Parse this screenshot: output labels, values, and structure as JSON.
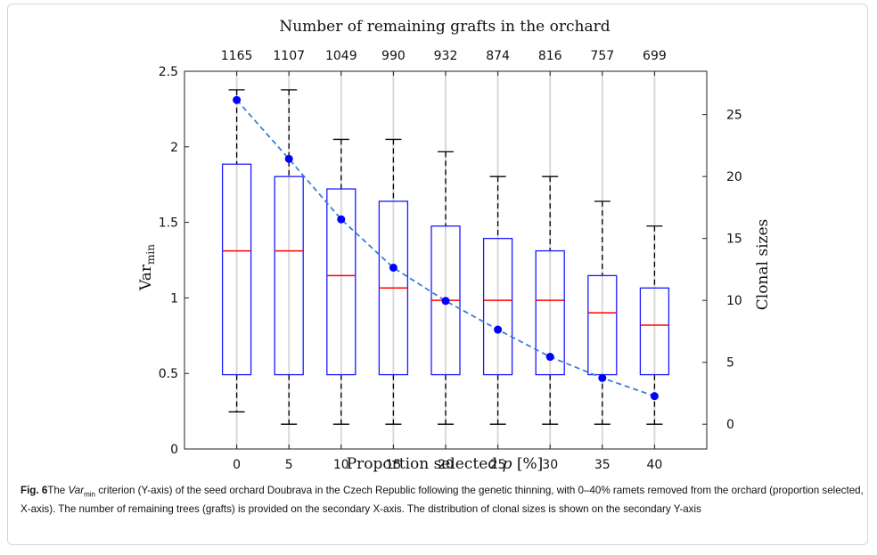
{
  "figure": {
    "caption_label": "Fig. 6",
    "caption_parts": {
      "p1": "The ",
      "var_main": "Var",
      "var_sub": "min",
      "p2": " criterion (Y-axis) of the seed orchard Doubrava in the Czech Republic following the genetic thinning, with 0–40% ramets removed from the orchard (proportion selected, X-axis). The number of remaining trees (grafts) is provided on the secondary X-axis. The distribution of clonal sizes is shown on the secondary Y-axis"
    }
  },
  "chart_data": {
    "type": "box",
    "title_top": "Number of remaining grafts in the orchard",
    "xlabel": "Proportion selected p [%]",
    "xlabel_parts": {
      "main": "Proportion selected ",
      "var": "p",
      "unit": " [%]"
    },
    "ylabel_main": "Var",
    "ylabel_sub": "min",
    "ylabel_right": "Clonal sizes",
    "x": [
      0,
      5,
      10,
      15,
      20,
      25,
      30,
      35,
      40
    ],
    "x_tick_labels": [
      "0",
      "5",
      "10",
      "15",
      "20",
      "25",
      "30",
      "35",
      "40"
    ],
    "top_tick_labels": [
      "1165",
      "1107",
      "1049",
      "990",
      "932",
      "874",
      "816",
      "757",
      "699"
    ],
    "ylim_left": [
      0,
      2.5
    ],
    "yticks_left": [
      0,
      0.5,
      1,
      1.5,
      2,
      2.5
    ],
    "ytick_labels_left": [
      "0",
      "0.5",
      "1",
      "1.5",
      "2",
      "2.5"
    ],
    "ylim_right": [
      -2,
      28.5
    ],
    "yticks_right": [
      0,
      5,
      10,
      15,
      20,
      25
    ],
    "ytick_labels_right": [
      "0",
      "5",
      "10",
      "15",
      "20",
      "25"
    ],
    "boxes": [
      {
        "x": 0,
        "whisker_low": 1,
        "q1": 4,
        "median": 14,
        "q3": 21,
        "whisker_high": 27
      },
      {
        "x": 5,
        "whisker_low": 0,
        "q1": 4,
        "median": 14,
        "q3": 20,
        "whisker_high": 27
      },
      {
        "x": 10,
        "whisker_low": 0,
        "q1": 4,
        "median": 12,
        "q3": 19,
        "whisker_high": 23
      },
      {
        "x": 15,
        "whisker_low": 0,
        "q1": 4,
        "median": 11,
        "q3": 18,
        "whisker_high": 23
      },
      {
        "x": 20,
        "whisker_low": 0,
        "q1": 4,
        "median": 10,
        "q3": 16,
        "whisker_high": 22
      },
      {
        "x": 25,
        "whisker_low": 0,
        "q1": 4,
        "median": 10,
        "q3": 15,
        "whisker_high": 20
      },
      {
        "x": 30,
        "whisker_low": 0,
        "q1": 4,
        "median": 10,
        "q3": 14,
        "whisker_high": 20
      },
      {
        "x": 35,
        "whisker_low": 0,
        "q1": 4,
        "median": 9,
        "q3": 12,
        "whisker_high": 18
      },
      {
        "x": 40,
        "whisker_low": 0,
        "q1": 4,
        "median": 8,
        "q3": 11,
        "whisker_high": 16
      }
    ],
    "varmin_series": {
      "x": [
        0,
        5,
        10,
        15,
        20,
        25,
        30,
        35,
        40
      ],
      "values": [
        2.31,
        1.92,
        1.52,
        1.2,
        0.98,
        0.79,
        0.61,
        0.47,
        0.35
      ]
    },
    "grid": "vertical",
    "colors": {
      "box": "#1a1aff",
      "median": "#ff0000",
      "whisker": "#000000",
      "dots": "#0000ff",
      "dashed_line": "#3d7fd1",
      "grid": "#d9d9d9"
    }
  }
}
